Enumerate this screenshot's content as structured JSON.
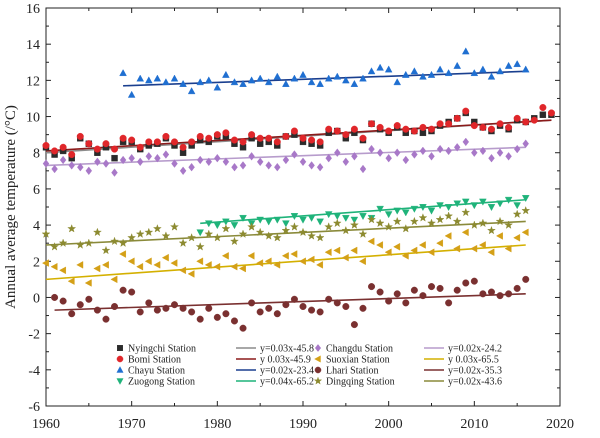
{
  "chart_data": {
    "type": "scatter",
    "xlabel": "",
    "ylabel": "Annual average temperature (/°C)",
    "xlim": [
      1960,
      2020
    ],
    "ylim": [
      -6,
      16
    ],
    "xticks": [
      "1960",
      "1970",
      "1980",
      "1990",
      "2000",
      "2010",
      "2020"
    ],
    "yticks": [
      "-6",
      "-4",
      "-2",
      "0",
      "2",
      "4",
      "6",
      "8",
      "10",
      "12",
      "14",
      "16"
    ],
    "grid": false,
    "legend_position": "bottom-center",
    "series": [
      {
        "name": "Nyingchi Station",
        "marker": "square",
        "color": "#2b2b2b",
        "fit_label": "y=0.03x-45.8",
        "fit_color": "#8c8c8c",
        "fit": [
          1960,
          8.0,
          2019,
          9.8
        ],
        "x": [
          1960,
          1961,
          1962,
          1963,
          1964,
          1965,
          1966,
          1967,
          1968,
          1969,
          1970,
          1971,
          1972,
          1973,
          1974,
          1975,
          1976,
          1977,
          1978,
          1979,
          1980,
          1981,
          1982,
          1983,
          1984,
          1985,
          1986,
          1987,
          1988,
          1989,
          1990,
          1991,
          1992,
          1993,
          1994,
          1995,
          1996,
          1997,
          1998,
          1999,
          2000,
          2001,
          2002,
          2003,
          2004,
          2005,
          2006,
          2007,
          2008,
          2009,
          2010,
          2011,
          2012,
          2013,
          2014,
          2015,
          2016,
          2017,
          2018,
          2019
        ],
        "y": [
          8.3,
          7.9,
          8.1,
          7.7,
          8.8,
          8.5,
          8.0,
          8.3,
          7.7,
          8.6,
          8.6,
          8.2,
          8.4,
          8.5,
          8.8,
          8.4,
          8.0,
          8.4,
          8.7,
          8.6,
          8.9,
          8.9,
          8.5,
          8.3,
          8.8,
          8.5,
          8.6,
          8.4,
          8.9,
          9.0,
          8.6,
          8.5,
          8.4,
          9.1,
          9.2,
          8.8,
          9.1,
          8.7,
          9.6,
          9.3,
          9.1,
          9.4,
          9.1,
          9.2,
          9.1,
          9.2,
          9.5,
          9.7,
          9.9,
          10.2,
          9.7,
          9.4,
          9.2,
          9.5,
          9.3,
          9.8,
          9.7,
          9.9,
          10.1,
          10.1
        ]
      },
      {
        "name": "Bomi Station",
        "marker": "circle",
        "color": "#e0262a",
        "fit_label": "y 0.03x-45.9",
        "fit_color": "#8b1a1a",
        "fit": [
          1960,
          8.1,
          2019,
          9.8
        ],
        "x": [
          1960,
          1961,
          1962,
          1963,
          1964,
          1965,
          1966,
          1967,
          1968,
          1969,
          1970,
          1971,
          1972,
          1973,
          1974,
          1975,
          1976,
          1977,
          1978,
          1979,
          1980,
          1981,
          1982,
          1983,
          1984,
          1985,
          1986,
          1987,
          1988,
          1989,
          1990,
          1991,
          1992,
          1993,
          1994,
          1995,
          1996,
          1997,
          1998,
          1999,
          2000,
          2001,
          2002,
          2003,
          2004,
          2005,
          2006,
          2007,
          2008,
          2009,
          2010,
          2011,
          2012,
          2013,
          2014,
          2015,
          2016,
          2017,
          2018,
          2019
        ],
        "y": [
          8.4,
          8.1,
          8.3,
          7.9,
          8.9,
          8.5,
          8.2,
          8.5,
          8.2,
          8.8,
          8.7,
          8.3,
          8.6,
          8.6,
          8.9,
          8.6,
          8.3,
          8.6,
          8.9,
          8.8,
          9.0,
          9.1,
          8.7,
          8.6,
          9.0,
          8.8,
          8.8,
          8.6,
          8.9,
          9.2,
          8.8,
          8.7,
          8.6,
          9.3,
          9.2,
          9.0,
          9.3,
          8.8,
          9.6,
          9.4,
          9.2,
          9.5,
          9.3,
          9.2,
          9.4,
          9.3,
          9.6,
          9.6,
          9.9,
          10.3,
          9.5,
          9.4,
          9.3,
          9.6,
          9.4,
          9.9,
          9.7,
          9.8,
          10.5,
          10.2
        ]
      },
      {
        "name": "Chayu Station",
        "marker": "triangle-up",
        "color": "#1f6fd1",
        "fit_label": "y=0.02x-23.4",
        "fit_color": "#1a3f8f",
        "fit": [
          1969,
          11.7,
          2016,
          12.5
        ],
        "x": [
          1969,
          1970,
          1971,
          1972,
          1973,
          1974,
          1975,
          1976,
          1977,
          1978,
          1979,
          1980,
          1981,
          1982,
          1983,
          1984,
          1985,
          1986,
          1987,
          1988,
          1989,
          1990,
          1991,
          1992,
          1993,
          1994,
          1995,
          1996,
          1997,
          1998,
          1999,
          2000,
          2001,
          2002,
          2003,
          2004,
          2005,
          2006,
          2007,
          2008,
          2009,
          2010,
          2011,
          2012,
          2013,
          2014,
          2015,
          2016
        ],
        "y": [
          12.4,
          11.2,
          12.1,
          12.0,
          12.1,
          11.9,
          12.1,
          11.8,
          11.4,
          11.9,
          12.0,
          11.6,
          12.3,
          11.9,
          11.8,
          12.0,
          12.1,
          11.9,
          12.2,
          11.8,
          12.1,
          12.3,
          11.9,
          11.8,
          12.1,
          12.2,
          12.0,
          11.8,
          12.1,
          12.5,
          12.7,
          12.6,
          11.9,
          12.3,
          12.5,
          12.2,
          12.3,
          12.6,
          12.4,
          12.8,
          13.6,
          12.4,
          12.6,
          12.2,
          12.5,
          12.8,
          12.9,
          12.6
        ]
      },
      {
        "name": "Zuogong Station",
        "marker": "triangle-down",
        "color": "#1fb37a",
        "fit_label": "y=0.04x-65.2",
        "fit_color": "#1fb37a",
        "fit": [
          1978,
          4.1,
          2016,
          5.4
        ],
        "x": [
          1978,
          1979,
          1980,
          1981,
          1982,
          1983,
          1984,
          1985,
          1986,
          1987,
          1988,
          1989,
          1990,
          1991,
          1992,
          1993,
          1994,
          1995,
          1996,
          1997,
          1998,
          1999,
          2000,
          2001,
          2002,
          2003,
          2004,
          2005,
          2006,
          2007,
          2008,
          2009,
          2010,
          2011,
          2012,
          2013,
          2014,
          2015,
          2016
        ],
        "y": [
          3.6,
          4.1,
          4.0,
          4.2,
          4.0,
          4.4,
          4.1,
          4.3,
          4.2,
          4.3,
          4.1,
          4.5,
          4.3,
          4.4,
          4.2,
          4.6,
          4.5,
          4.4,
          4.3,
          4.5,
          4.4,
          4.9,
          4.6,
          4.8,
          4.7,
          4.9,
          5.0,
          4.8,
          5.1,
          5.0,
          5.2,
          5.3,
          5.1,
          5.3,
          5.0,
          5.2,
          5.4,
          5.1,
          5.5
        ]
      },
      {
        "name": "Changdu Station",
        "marker": "diamond",
        "color": "#a878c8",
        "fit_label": "y=0.02x-24.2",
        "fit_color": "#b79ccc",
        "fit": [
          1960,
          7.3,
          2016,
          8.3
        ],
        "x": [
          1960,
          1961,
          1962,
          1963,
          1964,
          1965,
          1966,
          1967,
          1968,
          1969,
          1970,
          1971,
          1972,
          1973,
          1974,
          1975,
          1976,
          1977,
          1978,
          1979,
          1980,
          1981,
          1982,
          1983,
          1984,
          1985,
          1986,
          1987,
          1988,
          1989,
          1990,
          1991,
          1992,
          1993,
          1994,
          1995,
          1996,
          1997,
          1998,
          1999,
          2000,
          2001,
          2002,
          2003,
          2004,
          2005,
          2006,
          2007,
          2008,
          2009,
          2010,
          2011,
          2012,
          2013,
          2014,
          2015,
          2016
        ],
        "y": [
          7.4,
          7.1,
          7.6,
          7.3,
          7.2,
          7.0,
          7.5,
          7.4,
          6.9,
          7.6,
          7.7,
          7.5,
          7.8,
          7.7,
          7.9,
          7.4,
          7.0,
          7.2,
          7.6,
          7.5,
          7.7,
          7.5,
          7.2,
          7.3,
          7.8,
          7.5,
          7.3,
          7.2,
          7.6,
          7.9,
          7.5,
          7.3,
          7.2,
          7.7,
          8.0,
          7.5,
          7.8,
          7.1,
          8.2,
          8.0,
          7.7,
          8.0,
          7.6,
          7.9,
          8.1,
          7.8,
          8.2,
          8.1,
          8.3,
          8.6,
          8.0,
          8.1,
          7.7,
          8.0,
          7.8,
          8.2,
          8.5
        ]
      },
      {
        "name": "Suoxian Station",
        "marker": "triangle-left",
        "color": "#d4a017",
        "fit_label": "y 0.03x-65.5",
        "fit_color": "#d4b000",
        "fit": [
          1960,
          1.0,
          2016,
          2.9
        ],
        "x": [
          1960,
          1961,
          1962,
          1963,
          1964,
          1965,
          1966,
          1967,
          1968,
          1969,
          1970,
          1971,
          1972,
          1973,
          1974,
          1975,
          1976,
          1977,
          1978,
          1979,
          1980,
          1981,
          1982,
          1983,
          1984,
          1985,
          1986,
          1987,
          1988,
          1989,
          1990,
          1991,
          1992,
          1993,
          1994,
          1995,
          1996,
          1997,
          1998,
          1999,
          2000,
          2001,
          2002,
          2003,
          2004,
          2005,
          2006,
          2007,
          2008,
          2009,
          2010,
          2011,
          2012,
          2013,
          2014,
          2015,
          2016
        ],
        "y": [
          1.9,
          1.7,
          1.5,
          0.9,
          1.8,
          0.8,
          1.6,
          1.8,
          1.0,
          2.4,
          2.0,
          1.7,
          2.0,
          1.8,
          2.2,
          1.9,
          1.5,
          1.3,
          2.0,
          1.8,
          1.7,
          2.3,
          1.7,
          1.6,
          2.3,
          1.9,
          2.0,
          1.8,
          2.3,
          2.4,
          2.0,
          2.1,
          1.8,
          2.5,
          2.6,
          2.2,
          2.6,
          2.0,
          3.1,
          2.9,
          2.5,
          2.8,
          2.3,
          2.6,
          2.9,
          2.5,
          3.0,
          3.4,
          2.7,
          3.6,
          2.7,
          2.9,
          2.5,
          3.4,
          2.7,
          3.3,
          3.6
        ]
      },
      {
        "name": "Lhari Station",
        "marker": "circle",
        "color": "#7a3030",
        "fit_label": "y=0.02x-35.3",
        "fit_color": "#7a3030",
        "fit": [
          1961,
          -0.7,
          2016,
          0.2
        ],
        "x": [
          1961,
          1962,
          1963,
          1964,
          1965,
          1966,
          1967,
          1968,
          1969,
          1970,
          1971,
          1972,
          1973,
          1974,
          1975,
          1976,
          1977,
          1978,
          1979,
          1980,
          1981,
          1982,
          1983,
          1984,
          1985,
          1986,
          1987,
          1988,
          1989,
          1990,
          1991,
          1992,
          1993,
          1994,
          1995,
          1996,
          1997,
          1998,
          1999,
          2000,
          2001,
          2002,
          2003,
          2004,
          2005,
          2006,
          2007,
          2008,
          2009,
          2010,
          2011,
          2012,
          2013,
          2014,
          2015,
          2016
        ],
        "y": [
          0.0,
          -0.2,
          -0.9,
          -0.4,
          -0.1,
          -0.7,
          -1.2,
          -0.5,
          0.4,
          0.3,
          -0.8,
          -0.3,
          -0.7,
          -0.6,
          -0.4,
          -0.6,
          -0.8,
          -1.2,
          -0.6,
          -1.1,
          -0.9,
          -1.3,
          -1.7,
          -0.3,
          -0.8,
          -0.6,
          -0.9,
          -0.4,
          -0.1,
          -0.5,
          -0.7,
          -0.8,
          -0.1,
          -0.3,
          -0.5,
          -1.5,
          -0.6,
          0.6,
          0.3,
          -0.2,
          0.2,
          -0.3,
          0.4,
          0.1,
          0.6,
          0.5,
          -0.3,
          0.4,
          0.8,
          0.9,
          0.2,
          0.3,
          0.1,
          0.2,
          0.5,
          1.0
        ]
      },
      {
        "name": "Dingqing Station",
        "marker": "star",
        "color": "#8c8a30",
        "fit_label": "y=0.02x-43.6",
        "fit_color": "#8a8a3a",
        "fit": [
          1960,
          2.9,
          2016,
          4.2
        ],
        "x": [
          1960,
          1961,
          1962,
          1963,
          1964,
          1965,
          1966,
          1967,
          1968,
          1969,
          1970,
          1971,
          1972,
          1973,
          1974,
          1975,
          1976,
          1977,
          1978,
          1979,
          1980,
          1981,
          1982,
          1983,
          1984,
          1985,
          1986,
          1987,
          1988,
          1989,
          1990,
          1991,
          1992,
          1993,
          1994,
          1995,
          1996,
          1997,
          1998,
          1999,
          2000,
          2001,
          2002,
          2003,
          2004,
          2005,
          2006,
          2007,
          2008,
          2009,
          2010,
          2011,
          2012,
          2013,
          2014,
          2015,
          2016
        ],
        "y": [
          3.5,
          2.8,
          3.0,
          3.8,
          2.9,
          3.0,
          3.6,
          2.6,
          3.1,
          3.0,
          3.3,
          3.5,
          3.6,
          3.8,
          3.4,
          3.9,
          3.0,
          3.3,
          2.8,
          3.5,
          3.3,
          3.8,
          3.1,
          3.5,
          3.9,
          3.6,
          3.4,
          3.3,
          3.7,
          3.9,
          3.6,
          3.4,
          3.3,
          3.9,
          4.1,
          3.7,
          4.0,
          3.5,
          4.3,
          4.1,
          3.9,
          4.2,
          3.8,
          4.2,
          4.4,
          4.1,
          4.3,
          4.5,
          4.2,
          4.7,
          4.0,
          4.1,
          3.7,
          4.2,
          4.0,
          4.6,
          4.8
        ]
      }
    ]
  }
}
